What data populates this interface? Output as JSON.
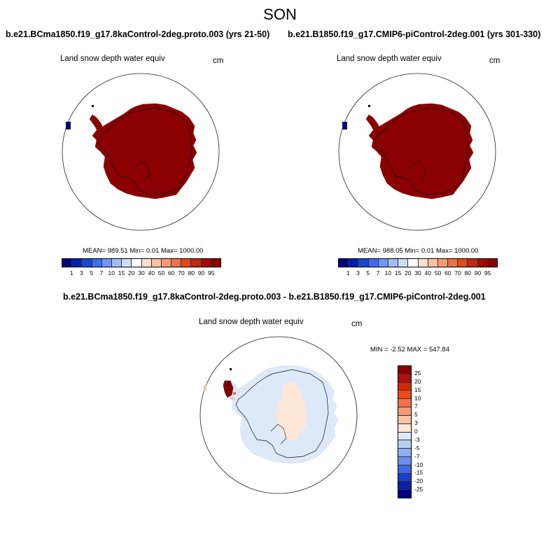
{
  "season": "SON",
  "panels": [
    {
      "case": "b.e21.BCma1850.f19_g17.8kaControl-2deg.proto.003 (yrs 21-50)",
      "variable": "Land snow depth water equiv",
      "units": "cm",
      "stats": "MEAN= 989.51  Min=   0.01  Max= 1000.00"
    },
    {
      "case": "b.e21.B1850.f19_g17.CMIP6-piControl-2deg.001 (yrs 301-330)",
      "variable": "Land snow depth water equiv",
      "units": "cm",
      "stats": "MEAN= 988.05  Min=   0.01  Max= 1000.00"
    },
    {
      "case": "b.e21.BCma1850.f19_g17.8kaControl-2deg.proto.003 - b.e21.B1850.f19_g17.CMIP6-piControl-2deg.001",
      "variable": "Land snow depth water equiv",
      "units": "cm",
      "stats": "MIN =  -2.52 MAX = 547.84"
    }
  ],
  "chart_data": [
    {
      "type": "heatmap",
      "projection": "south-polar-stereographic",
      "title": "b.e21.BCma1850.f19_g17.8kaControl-2deg.proto.003 (yrs 21-50)",
      "field": "Land snow depth water equiv",
      "units": "cm",
      "mean": 989.51,
      "min": 0.01,
      "max": 1000.0,
      "colorbar": {
        "levels": [
          "1",
          "3",
          "5",
          "7",
          "10",
          "15",
          "20",
          "30",
          "40",
          "50",
          "60",
          "70",
          "80",
          "90",
          "95"
        ],
        "colors": [
          "#000080",
          "#0020b0",
          "#1a46d0",
          "#3d6df0",
          "#6f96f5",
          "#a4bdf5",
          "#cfdcf7",
          "#ffffff",
          "#fde0cc",
          "#fcc0a0",
          "#f79a70",
          "#f07048",
          "#e04820",
          "#c02810",
          "#a00a00",
          "#8b0000"
        ]
      },
      "regions": [
        {
          "name": "Antarctica",
          "value_class": ">95"
        },
        {
          "name": "South Georgia",
          "value_class": "<1"
        }
      ]
    },
    {
      "type": "heatmap",
      "projection": "south-polar-stereographic",
      "title": "b.e21.B1850.f19_g17.CMIP6-piControl-2deg.001 (yrs 301-330)",
      "field": "Land snow depth water equiv",
      "units": "cm",
      "mean": 988.05,
      "min": 0.01,
      "max": 1000.0,
      "colorbar": {
        "levels": [
          "1",
          "3",
          "5",
          "7",
          "10",
          "15",
          "20",
          "30",
          "40",
          "50",
          "60",
          "70",
          "80",
          "90",
          "95"
        ],
        "colors": [
          "#000080",
          "#0020b0",
          "#1a46d0",
          "#3d6df0",
          "#6f96f5",
          "#a4bdf5",
          "#cfdcf7",
          "#ffffff",
          "#fde0cc",
          "#fcc0a0",
          "#f79a70",
          "#f07048",
          "#e04820",
          "#c02810",
          "#a00a00",
          "#8b0000"
        ]
      },
      "regions": [
        {
          "name": "Antarctica",
          "value_class": ">95"
        },
        {
          "name": "South Georgia",
          "value_class": "<1"
        }
      ]
    },
    {
      "type": "heatmap",
      "projection": "south-polar-stereographic",
      "title": "b.e21.BCma1850.f19_g17.8kaControl-2deg.proto.003 - b.e21.B1850.f19_g17.CMIP6-piControl-2deg.001",
      "field": "Land snow depth water equiv",
      "units": "cm",
      "min": -2.52,
      "max": 547.84,
      "colorbar": {
        "levels": [
          "25",
          "20",
          "15",
          "10",
          "7",
          "5",
          "3",
          "0",
          "-3",
          "-5",
          "-7",
          "-10",
          "-15",
          "-20",
          "-25"
        ],
        "colors": [
          "#8b0000",
          "#b01010",
          "#d02a0a",
          "#f04a1a",
          "#f57048",
          "#f59a78",
          "#fbc3a0",
          "#fde8d8",
          "#dde9f8",
          "#b5cdf3",
          "#8fb0f0",
          "#6a8ff0",
          "#3d66e8",
          "#1a3ed0",
          "#0a20a8",
          "#000080"
        ]
      },
      "regions": [
        {
          "name": "Antarctica coastal margin",
          "value_class": "-3 to 0"
        },
        {
          "name": "East Antarctic interior",
          "value_class": "0 to 3"
        },
        {
          "name": "Antarctic Peninsula tip",
          "value_class": ">25"
        }
      ]
    }
  ]
}
